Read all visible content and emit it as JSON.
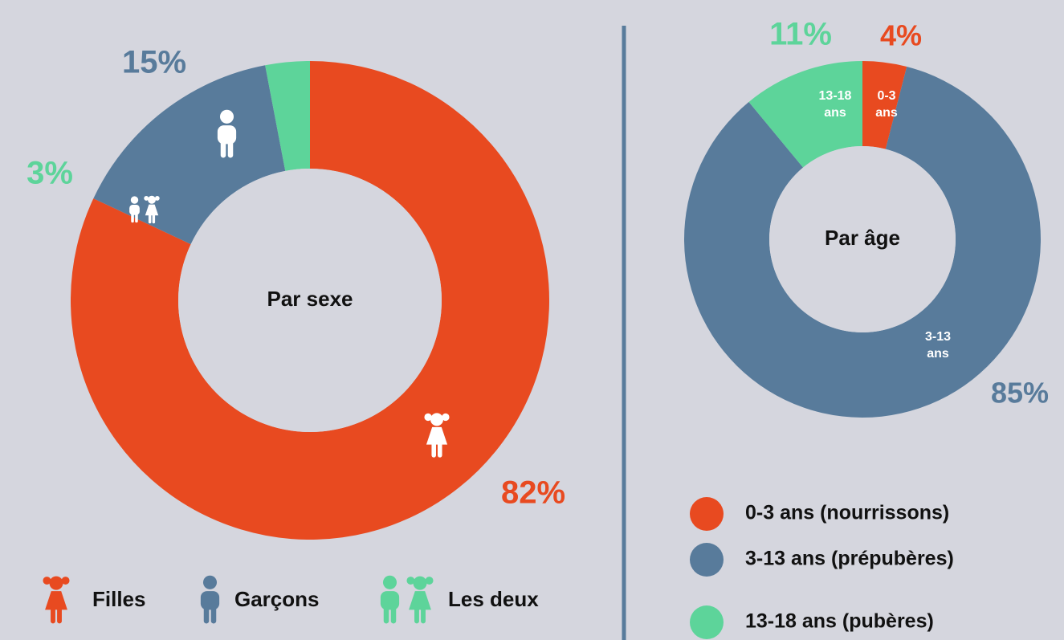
{
  "chart_data": [
    {
      "type": "pie",
      "title": "Par sexe",
      "categories": [
        "Filles",
        "Garçons",
        "Les deux"
      ],
      "values": [
        82,
        15,
        3
      ],
      "value_labels": [
        "82%",
        "15%",
        "3%"
      ],
      "colors": [
        "#e84a20",
        "#587b9b",
        "#5dd49a"
      ]
    },
    {
      "type": "pie",
      "title": "Par âge",
      "categories": [
        "0-3 ans (nourrissons)",
        "3-13 ans (prépubères)",
        "13-18 ans (pubères)"
      ],
      "values": [
        4,
        85,
        11
      ],
      "value_labels": [
        "4%",
        "85%",
        "11%"
      ],
      "slice_labels": [
        [
          "0-3",
          "ans"
        ],
        [
          "3-13",
          "ans"
        ],
        [
          "13-18",
          "ans"
        ]
      ],
      "colors": [
        "#e84a20",
        "#587b9b",
        "#5dd49a"
      ]
    }
  ]
}
